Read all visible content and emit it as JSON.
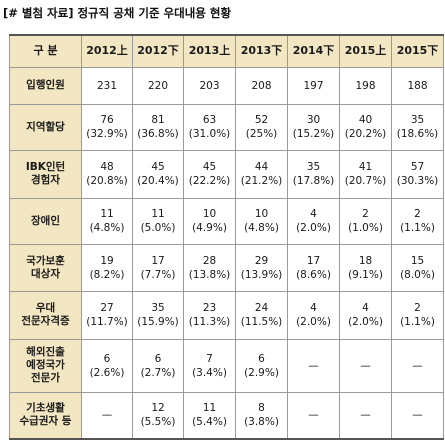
{
  "title": "[# 별첨 자료] 정규직 공채 기준 우대내용 현황",
  "table": {
    "corner": "구  분",
    "columns": [
      "2012上",
      "2012下",
      "2013上",
      "2013下",
      "2014下",
      "2015上",
      "2015下"
    ],
    "rows": [
      {
        "label": [
          "입행인원"
        ],
        "cells": [
          {
            "v": "231",
            "p": ""
          },
          {
            "v": "220",
            "p": ""
          },
          {
            "v": "203",
            "p": ""
          },
          {
            "v": "208",
            "p": ""
          },
          {
            "v": "197",
            "p": ""
          },
          {
            "v": "198",
            "p": ""
          },
          {
            "v": "188",
            "p": ""
          }
        ]
      },
      {
        "label": [
          "지역할당"
        ],
        "cells": [
          {
            "v": "76",
            "p": "(32.9%)"
          },
          {
            "v": "81",
            "p": "(36.8%)"
          },
          {
            "v": "63",
            "p": "(31.0%)"
          },
          {
            "v": "52",
            "p": "(25%)"
          },
          {
            "v": "30",
            "p": "(15.2%)"
          },
          {
            "v": "40",
            "p": "(20.2%)"
          },
          {
            "v": "35",
            "p": "(18.6%)"
          }
        ]
      },
      {
        "label": [
          "IBK인턴",
          "경험자"
        ],
        "cells": [
          {
            "v": "48",
            "p": "(20.8%)"
          },
          {
            "v": "45",
            "p": "(20.4%)"
          },
          {
            "v": "45",
            "p": "(22.2%)"
          },
          {
            "v": "44",
            "p": "(21.2%)"
          },
          {
            "v": "35",
            "p": "(17.8%)"
          },
          {
            "v": "41",
            "p": "(20.7%)"
          },
          {
            "v": "57",
            "p": "(30.3%)"
          }
        ]
      },
      {
        "label": [
          "장애인"
        ],
        "cells": [
          {
            "v": "11",
            "p": "(4.8%)"
          },
          {
            "v": "11",
            "p": "(5.0%)"
          },
          {
            "v": "10",
            "p": "(4.9%)"
          },
          {
            "v": "10",
            "p": "(4.8%)"
          },
          {
            "v": "4",
            "p": "(2.0%)"
          },
          {
            "v": "2",
            "p": "(1.0%)"
          },
          {
            "v": "2",
            "p": "(1.1%)"
          }
        ]
      },
      {
        "label": [
          "국가보훈",
          "대상자"
        ],
        "cells": [
          {
            "v": "19",
            "p": "(8.2%)"
          },
          {
            "v": "17",
            "p": "(7.7%)"
          },
          {
            "v": "28",
            "p": "(13.8%)"
          },
          {
            "v": "29",
            "p": "(13.9%)"
          },
          {
            "v": "17",
            "p": "(8.6%)"
          },
          {
            "v": "18",
            "p": "(9.1%)"
          },
          {
            "v": "15",
            "p": "(8.0%)"
          }
        ]
      },
      {
        "label": [
          "우대",
          "전문자격증"
        ],
        "cells": [
          {
            "v": "27",
            "p": "(11.7%)"
          },
          {
            "v": "35",
            "p": "(15.9%)"
          },
          {
            "v": "23",
            "p": "(11.3%)"
          },
          {
            "v": "24",
            "p": "(11.5%)"
          },
          {
            "v": "4",
            "p": "(2.0%)"
          },
          {
            "v": "4",
            "p": "(2.0%)"
          },
          {
            "v": "2",
            "p": "(1.1%)"
          }
        ]
      },
      {
        "label": [
          "해외진출",
          "예정국가",
          "전문가"
        ],
        "cells": [
          {
            "v": "6",
            "p": "(2.6%)"
          },
          {
            "v": "6",
            "p": "(2.7%)"
          },
          {
            "v": "7",
            "p": "(3.4%)"
          },
          {
            "v": "6",
            "p": "(2.9%)"
          },
          {
            "v": "—",
            "p": ""
          },
          {
            "v": "—",
            "p": ""
          },
          {
            "v": "—",
            "p": ""
          }
        ]
      },
      {
        "label": [
          "기초생활",
          "수급권자 등"
        ],
        "cells": [
          {
            "v": "—",
            "p": ""
          },
          {
            "v": "12",
            "p": "(5.5%)"
          },
          {
            "v": "11",
            "p": "(5.4%)"
          },
          {
            "v": "8",
            "p": "(3.8%)"
          },
          {
            "v": "—",
            "p": ""
          },
          {
            "v": "—",
            "p": ""
          },
          {
            "v": "—",
            "p": ""
          }
        ]
      }
    ]
  }
}
